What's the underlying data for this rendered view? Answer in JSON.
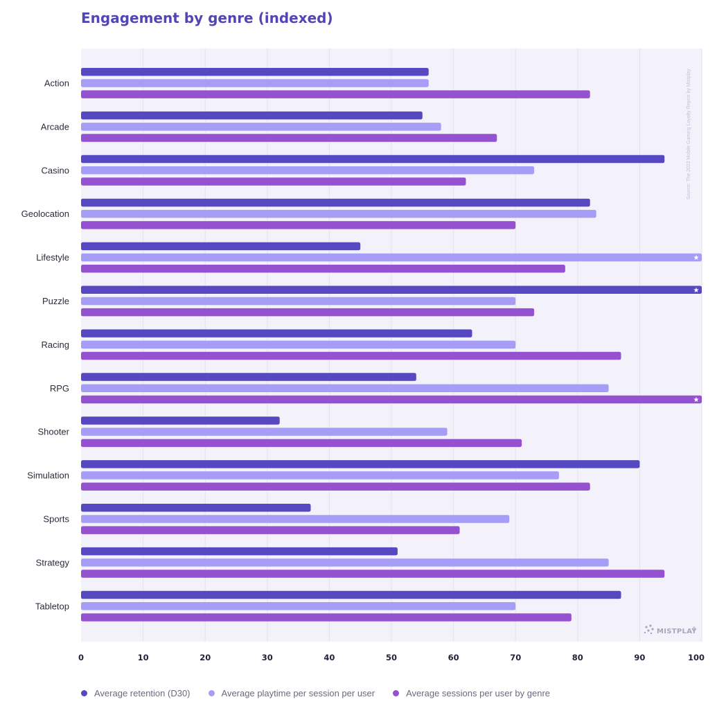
{
  "page": {
    "source_note": "Source: The 2023 Mobile Gaming Loyalty Report by Mistplay",
    "logo": {
      "text": "MISTPLAY",
      "trademark": "®",
      "icon": "mistplay-logo-dots-icon"
    },
    "star_icon": "star-icon"
  },
  "colors": {
    "background": "#f3f2fb",
    "gridline": "#e3e1ee",
    "title": "#5146b3",
    "series": [
      "#5548c0",
      "#a69df6",
      "#9452d0"
    ]
  },
  "chart_data": {
    "type": "bar",
    "orientation": "horizontal",
    "title": "Engagement by genre (indexed)",
    "xlabel": "",
    "ylabel": "",
    "xlim": [
      0,
      100
    ],
    "xticks": [
      0,
      10,
      20,
      30,
      40,
      50,
      60,
      70,
      80,
      90,
      100
    ],
    "grid": true,
    "legend_position": "bottom",
    "categories": [
      "Action",
      "Arcade",
      "Casino",
      "Geolocation",
      "Lifestyle",
      "Puzzle",
      "Racing",
      "RPG",
      "Shooter",
      "Simulation",
      "Sports",
      "Strategy",
      "Tabletop"
    ],
    "series": [
      {
        "name": "Average retention (D30)",
        "values": [
          56,
          55,
          94,
          82,
          45,
          100,
          63,
          54,
          32,
          90,
          37,
          51,
          87
        ]
      },
      {
        "name": "Average playtime per session per user",
        "values": [
          56,
          58,
          73,
          83,
          100,
          70,
          70,
          85,
          59,
          77,
          69,
          85,
          70
        ]
      },
      {
        "name": "Average sessions per user by genre",
        "values": [
          82,
          67,
          62,
          70,
          78,
          73,
          87,
          100,
          71,
          82,
          61,
          94,
          79
        ]
      }
    ]
  }
}
